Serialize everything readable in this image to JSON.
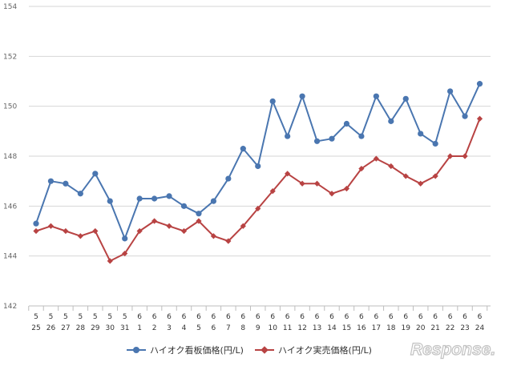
{
  "chart_data": {
    "type": "line",
    "title": "",
    "xlabel": "",
    "ylabel": "",
    "ylim": [
      142,
      154
    ],
    "yticks": [
      142,
      144,
      146,
      148,
      150,
      152,
      154
    ],
    "grid": "horizontal",
    "legend_position": "bottom",
    "categories": [
      {
        "month": "5",
        "day": "25"
      },
      {
        "month": "5",
        "day": "26"
      },
      {
        "month": "5",
        "day": "27"
      },
      {
        "month": "5",
        "day": "28"
      },
      {
        "month": "5",
        "day": "29"
      },
      {
        "month": "5",
        "day": "30"
      },
      {
        "month": "5",
        "day": "31"
      },
      {
        "month": "6",
        "day": "1"
      },
      {
        "month": "6",
        "day": "2"
      },
      {
        "month": "6",
        "day": "3"
      },
      {
        "month": "6",
        "day": "4"
      },
      {
        "month": "6",
        "day": "5"
      },
      {
        "month": "6",
        "day": "6"
      },
      {
        "month": "6",
        "day": "7"
      },
      {
        "month": "6",
        "day": "8"
      },
      {
        "month": "6",
        "day": "9"
      },
      {
        "month": "6",
        "day": "10"
      },
      {
        "month": "6",
        "day": "11"
      },
      {
        "month": "6",
        "day": "12"
      },
      {
        "month": "6",
        "day": "13"
      },
      {
        "month": "6",
        "day": "14"
      },
      {
        "month": "6",
        "day": "15"
      },
      {
        "month": "6",
        "day": "16"
      },
      {
        "month": "6",
        "day": "17"
      },
      {
        "month": "6",
        "day": "18"
      },
      {
        "month": "6",
        "day": "19"
      },
      {
        "month": "6",
        "day": "20"
      },
      {
        "month": "6",
        "day": "21"
      },
      {
        "month": "6",
        "day": "22"
      },
      {
        "month": "6",
        "day": "23"
      },
      {
        "month": "6",
        "day": "24"
      }
    ],
    "series": [
      {
        "name": "ハイオク看板価格(円/L)",
        "color": "#4a76b0",
        "marker": "circle",
        "values": [
          145.3,
          147.0,
          146.9,
          146.5,
          147.3,
          146.2,
          144.7,
          146.3,
          146.3,
          146.4,
          146.0,
          145.7,
          146.2,
          147.1,
          148.3,
          147.6,
          150.2,
          148.8,
          150.4,
          148.6,
          148.7,
          149.3,
          148.8,
          150.4,
          149.4,
          150.3,
          148.9,
          148.5,
          150.6,
          149.6,
          150.9
        ]
      },
      {
        "name": "ハイオク実売価格(円/L)",
        "color": "#b84343",
        "marker": "diamond",
        "values": [
          145.0,
          145.2,
          145.0,
          144.8,
          145.0,
          143.8,
          144.1,
          145.0,
          145.4,
          145.2,
          145.0,
          145.4,
          144.8,
          144.6,
          145.2,
          145.9,
          146.6,
          147.3,
          146.9,
          146.9,
          146.5,
          146.7,
          147.5,
          147.9,
          147.6,
          147.2,
          146.9,
          147.2,
          148.0,
          148.0,
          149.5
        ]
      }
    ]
  },
  "watermark": {
    "text": "Response."
  }
}
